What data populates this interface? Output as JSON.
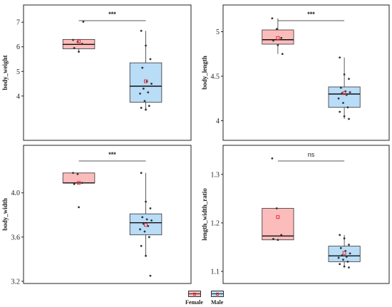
{
  "colors": {
    "female_fill": "#fdbcbc",
    "male_fill": "#b9dcf7",
    "box_stroke": "#333333",
    "mean_marker": "#e0303a",
    "point": "#333333"
  },
  "legend": {
    "placement": "bottom",
    "items": [
      {
        "key": "female",
        "label": "Female"
      },
      {
        "key": "male",
        "label": "Male"
      }
    ]
  },
  "chart_data": [
    {
      "type": "box",
      "panel": "body_weight",
      "ylabel": "body_weight",
      "ylim": [
        2.2,
        7.7
      ],
      "yticks": [
        4,
        5,
        6,
        7
      ],
      "significance": "***",
      "groups": [
        {
          "name": "Female",
          "q1": 5.92,
          "median": 6.1,
          "q3": 6.3,
          "whisker_low": 5.78,
          "whisker_high": 6.3,
          "mean": 6.22,
          "points": [
            6.28,
            6.2,
            6.12,
            5.95,
            5.8,
            7.02
          ]
        },
        {
          "name": "Male",
          "q1": 3.75,
          "median": 4.4,
          "q3": 5.35,
          "whisker_low": 3.4,
          "whisker_high": 6.65,
          "mean": 4.6,
          "points": [
            6.65,
            6.05,
            5.5,
            5.15,
            4.6,
            4.5,
            4.3,
            4.15,
            4.1,
            3.8,
            3.6,
            3.52,
            3.45
          ]
        }
      ]
    },
    {
      "type": "box",
      "panel": "body_length",
      "ylabel": "body_length",
      "ylim": [
        3.78,
        5.3
      ],
      "yticks": [
        4.0,
        4.5,
        5.0
      ],
      "significance": "***",
      "groups": [
        {
          "name": "Female",
          "q1": 4.86,
          "median": 4.91,
          "q3": 5.02,
          "whisker_low": 4.75,
          "whisker_high": 5.15,
          "mean": 4.93,
          "points": [
            5.15,
            5.03,
            4.93,
            4.9,
            4.85,
            4.75
          ]
        },
        {
          "name": "Male",
          "q1": 4.15,
          "median": 4.3,
          "q3": 4.38,
          "whisker_low": 4.02,
          "whisker_high": 4.71,
          "mean": 4.31,
          "points": [
            4.71,
            4.52,
            4.47,
            4.37,
            4.33,
            4.32,
            4.31,
            4.29,
            4.25,
            4.2,
            4.15,
            4.1,
            4.05,
            4.02
          ]
        }
      ]
    },
    {
      "type": "box",
      "panel": "body_width",
      "ylabel": "body_width",
      "ylim": [
        3.18,
        4.43
      ],
      "yticks": [
        3.2,
        3.6,
        4.0
      ],
      "yticklabels": [
        "3.2",
        "3.6",
        "4.0"
      ],
      "significance": "***",
      "groups": [
        {
          "name": "Female",
          "q1": 4.09,
          "median": 4.09,
          "q3": 4.18,
          "whisker_low": 4.09,
          "whisker_high": 4.18,
          "mean": 4.09,
          "points": [
            4.18,
            4.17,
            4.09,
            4.08,
            3.87
          ]
        },
        {
          "name": "Male",
          "q1": 3.62,
          "median": 3.73,
          "q3": 3.81,
          "whisker_low": 3.43,
          "whisker_high": 4.18,
          "mean": 3.71,
          "points": [
            4.18,
            3.92,
            3.86,
            3.78,
            3.76,
            3.75,
            3.72,
            3.7,
            3.67,
            3.65,
            3.6,
            3.52,
            3.43,
            3.25
          ]
        }
      ]
    },
    {
      "type": "box",
      "panel": "length_width_ratio",
      "ylabel": "length_width_ratio",
      "ylim": [
        1.075,
        1.36
      ],
      "yticks": [
        1.1,
        1.2,
        1.3
      ],
      "significance": "ns",
      "groups": [
        {
          "name": "Female",
          "q1": 1.165,
          "median": 1.173,
          "q3": 1.23,
          "whisker_low": 1.165,
          "whisker_high": 1.23,
          "mean": 1.212,
          "points": [
            1.333,
            1.23,
            1.175,
            1.167,
            1.165
          ]
        },
        {
          "name": "Male",
          "q1": 1.12,
          "median": 1.132,
          "q3": 1.152,
          "whisker_low": 1.108,
          "whisker_high": 1.175,
          "mean": 1.138,
          "points": [
            1.175,
            1.168,
            1.155,
            1.148,
            1.142,
            1.137,
            1.133,
            1.13,
            1.128,
            1.124,
            1.12,
            1.115,
            1.11,
            1.108
          ]
        }
      ]
    }
  ]
}
